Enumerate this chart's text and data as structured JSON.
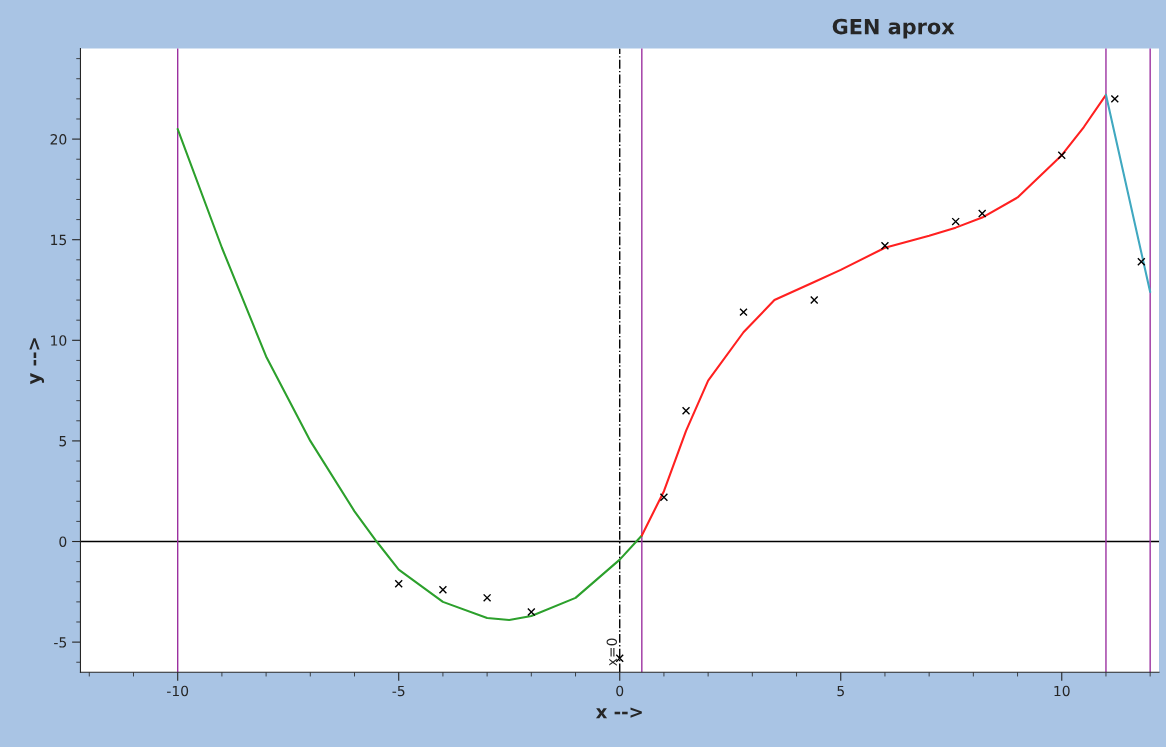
{
  "chart_data": {
    "type": "line",
    "title": "GEN aprox",
    "xlabel": "x -->",
    "ylabel": "y -->",
    "xlim": [
      -12.2,
      12.2
    ],
    "ylim": [
      -6.5,
      24.5
    ],
    "xticks": [
      -10,
      -5,
      0,
      5,
      10
    ],
    "yticks": [
      -5,
      0,
      5,
      10,
      15,
      20
    ],
    "grid": false,
    "legend": false,
    "series": [
      {
        "type": "scatter",
        "marker": "cross",
        "color": "#000000",
        "x": [
          -5,
          -4,
          -3,
          -2,
          0,
          1,
          1.5,
          2.8,
          4.4,
          6,
          7.6,
          8.2,
          10,
          11.2,
          11.8
        ],
        "values": [
          -2.1,
          -2.4,
          -2.8,
          -3.5,
          -5.8,
          2.2,
          6.5,
          11.4,
          12,
          14.7,
          15.9,
          16.3,
          19.2,
          22,
          13.9
        ]
      },
      {
        "color": "#2ca02c",
        "x": [
          -10,
          -9,
          -8,
          -7,
          -6,
          -5.5,
          -5,
          -4,
          -3,
          -2.5,
          -2,
          -1,
          0,
          0.5
        ],
        "values": [
          20.5,
          14.6,
          9.2,
          5.0,
          1.5,
          0,
          -1.4,
          -3.0,
          -3.8,
          -3.9,
          -3.7,
          -2.8,
          -0.9,
          0.3
        ]
      },
      {
        "color": "#ff2020",
        "x": [
          0.5,
          1,
          1.5,
          2,
          2.8,
          3.5,
          4.4,
          5,
          6,
          7,
          7.6,
          8.2,
          9,
          10,
          10.5,
          11
        ],
        "values": [
          0.3,
          2.5,
          5.5,
          8,
          10.4,
          12,
          12.9,
          13.5,
          14.6,
          15.2,
          15.6,
          16.1,
          17.1,
          19.2,
          20.6,
          22.2
        ]
      },
      {
        "color": "#40a8c0",
        "x": [
          11,
          12
        ],
        "values": [
          22.2,
          12.4
        ]
      }
    ],
    "ref_lines": [
      {
        "axis": "y",
        "value": 0,
        "color": "#000000",
        "line_style": "solid"
      },
      {
        "axis": "x",
        "value": 0,
        "label": "x=0",
        "color": "#000000",
        "line_style": "dashdot"
      },
      {
        "axis": "x",
        "value": -10,
        "color": "#9b30a0",
        "line_style": "solid"
      },
      {
        "axis": "x",
        "value": 0.5,
        "color": "#9b30a0",
        "line_style": "solid"
      },
      {
        "axis": "x",
        "value": 11,
        "color": "#9b30a0",
        "line_style": "solid"
      },
      {
        "axis": "x",
        "value": 12,
        "color": "#9b30a0",
        "line_style": "solid"
      }
    ]
  }
}
